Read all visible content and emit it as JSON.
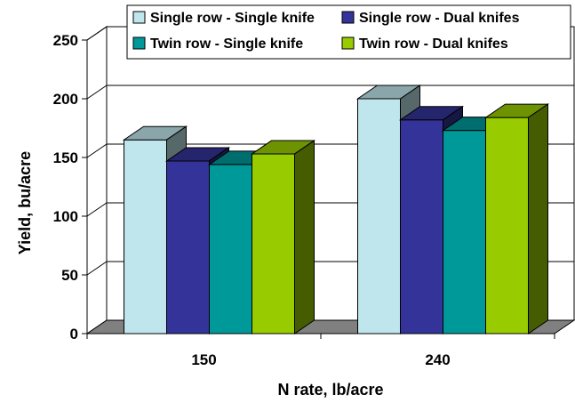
{
  "chart_data": {
    "type": "bar",
    "style": "3d-clustered",
    "title": "",
    "xlabel": "N rate, lb/acre",
    "ylabel": "Yield, bu/acre",
    "categories": [
      "150",
      "240"
    ],
    "ylim": [
      0,
      250
    ],
    "yticks": [
      0,
      50,
      100,
      150,
      200,
      250
    ],
    "grid": true,
    "legend_position": "top",
    "series": [
      {
        "name": "Single row - Single knife",
        "values": [
          165,
          200
        ],
        "color": "#bfe6ec"
      },
      {
        "name": "Single row - Dual knifes",
        "values": [
          147,
          182
        ],
        "color": "#333399"
      },
      {
        "name": "Twin row - Single knife",
        "values": [
          144,
          173
        ],
        "color": "#009999"
      },
      {
        "name": "Twin row - Dual knifes",
        "values": [
          153,
          184
        ],
        "color": "#99cc00"
      }
    ]
  }
}
